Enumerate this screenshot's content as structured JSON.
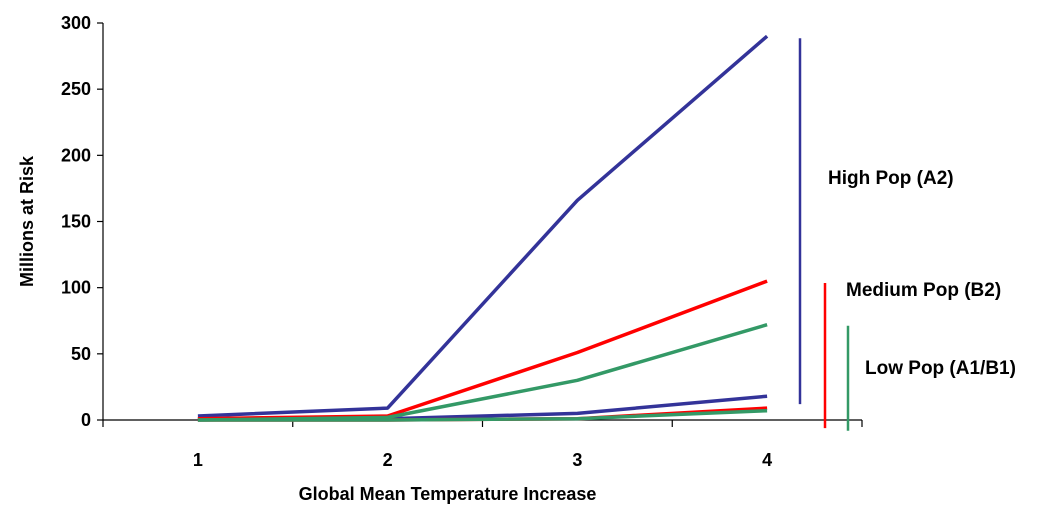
{
  "chart_data": {
    "type": "line",
    "xlabel": "Global Mean Temperature Increase",
    "ylabel": "Millions at Risk",
    "x": [
      1,
      2,
      3,
      4
    ],
    "xlim": [
      0.5,
      4.5
    ],
    "ylim": [
      0,
      300
    ],
    "yticks": [
      0,
      50,
      100,
      150,
      200,
      250,
      300
    ],
    "grid": false,
    "legend": "none",
    "series": [
      {
        "group": "high",
        "color": "#333399",
        "values": [
          3,
          9,
          166,
          290
        ]
      },
      {
        "group": "high",
        "color": "#333399",
        "values": [
          1,
          1,
          5,
          18
        ]
      },
      {
        "group": "medium",
        "color": "#ff0000",
        "values": [
          1,
          3,
          51,
          105
        ]
      },
      {
        "group": "medium",
        "color": "#ff0000",
        "values": [
          0,
          0,
          1,
          9
        ]
      },
      {
        "group": "low",
        "color": "#339966",
        "values": [
          0,
          2,
          30,
          72
        ]
      },
      {
        "group": "low",
        "color": "#339966",
        "values": [
          0,
          0,
          1,
          7
        ]
      }
    ],
    "brackets": [
      {
        "label": "High Pop (A2)",
        "color": "#333399",
        "range": [
          18,
          290
        ]
      },
      {
        "label": "Medium Pop (B2)",
        "color": "#ff0000",
        "range": [
          9,
          105
        ]
      },
      {
        "label": "Low Pop (A1/B1)",
        "color": "#339966",
        "range": [
          7,
          72
        ]
      }
    ]
  }
}
